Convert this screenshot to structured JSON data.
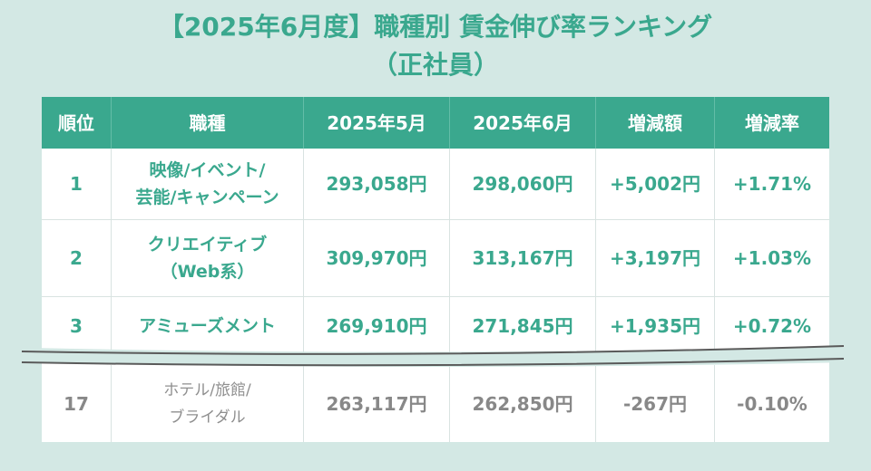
{
  "title": "【2025年6月度】職種別 賃金伸び率ランキング",
  "subtitle": "（正社員）",
  "table": {
    "headers": [
      "順位",
      "職種",
      "2025年5月",
      "2025年6月",
      "増減額",
      "増減率"
    ],
    "rows": [
      {
        "rank": "1",
        "job": "映像/イベント/\n芸能/キャンペーン",
        "may": "293,058円",
        "jun": "298,060円",
        "diff": "+5,002円",
        "rate": "+1.71%"
      },
      {
        "rank": "2",
        "job": "クリエイティブ\n（Web系）",
        "may": "309,970円",
        "jun": "313,167円",
        "diff": "+3,197円",
        "rate": "+1.03%"
      },
      {
        "rank": "3",
        "job": "アミューズメント",
        "may": "269,910円",
        "jun": "271,845円",
        "diff": "+1,935円",
        "rate": "+0.72%"
      },
      {
        "rank": "17",
        "job": "ホテル/旅館/\nブライダル",
        "may": "263,117円",
        "jun": "262,850円",
        "diff": "-267円",
        "rate": "-0.10%"
      }
    ]
  },
  "colors": {
    "accent": "#3aa88e",
    "background": "#d3e8e4",
    "muted": "#888888"
  }
}
